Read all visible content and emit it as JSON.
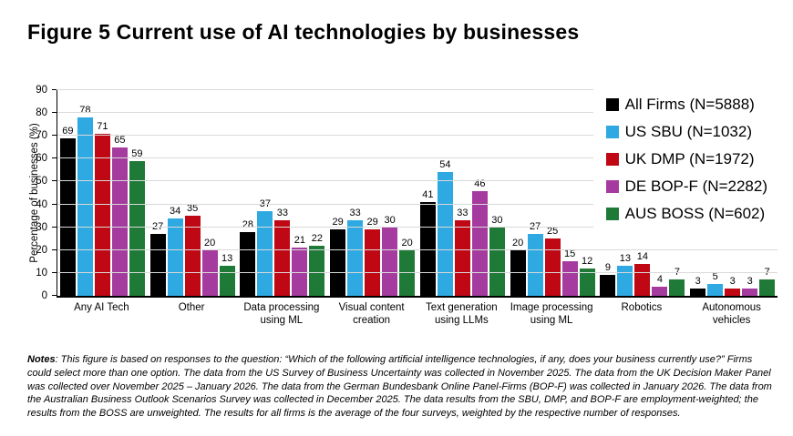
{
  "title": "Figure 5 Current use of AI technologies by businesses",
  "chart_data": {
    "type": "bar",
    "title": "Figure 5 Current use of AI technologies by businesses",
    "xlabel": "",
    "ylabel": "Percentage of businesses (%)",
    "ylim": [
      0,
      90
    ],
    "yticks": [
      0,
      10,
      20,
      30,
      40,
      50,
      60,
      70,
      80,
      90
    ],
    "grid": true,
    "legend_position": "top-right-inside",
    "bar_value_labels": true,
    "categories": [
      "Any AI Tech",
      "Other",
      "Data processing using ML",
      "Visual content creation",
      "Text generation using LLMs",
      "Image processing using ML",
      "Robotics",
      "Autonomous vehicles"
    ],
    "series": [
      {
        "name": "All Firms (N=5888)",
        "color": "#000000",
        "values": [
          69,
          27,
          28,
          29,
          41,
          20,
          9,
          3
        ]
      },
      {
        "name": "US SBU (N=1032)",
        "color": "#2ea9e1",
        "values": [
          78,
          34,
          37,
          33,
          54,
          27,
          13,
          5
        ]
      },
      {
        "name": "UK DMP (N=1972)",
        "color": "#c00714",
        "values": [
          71,
          35,
          33,
          29,
          33,
          25,
          14,
          3
        ]
      },
      {
        "name": "DE BOP-F (N=2282)",
        "color": "#a63b9f",
        "values": [
          65,
          20,
          21,
          30,
          46,
          15,
          4,
          3
        ]
      },
      {
        "name": "AUS BOSS (N=602)",
        "color": "#1e7a36",
        "values": [
          59,
          13,
          22,
          20,
          30,
          12,
          7,
          7
        ]
      }
    ]
  },
  "notes": {
    "label": "Notes",
    "text": ": This figure is based on responses to the question: “Which of the following artificial intelligence technologies, if any, does your business currently use?” Firms could select more than one option. The data from the US Survey of Business Uncertainty was collected in November 2025. The data from the UK Decision Maker Panel was collected over November 2025 – January 2026. The data from the German Bundesbank Online Panel-Firms (BOP-F) was collected in January 2026. The data from the Australian Business Outlook Scenarios Survey was collected in December 2025. The data results from the SBU, DMP, and BOP-F are employment-weighted; the results from the BOSS are unweighted. The results for all firms is the average of the four surveys, weighted by the respective number of responses."
  }
}
